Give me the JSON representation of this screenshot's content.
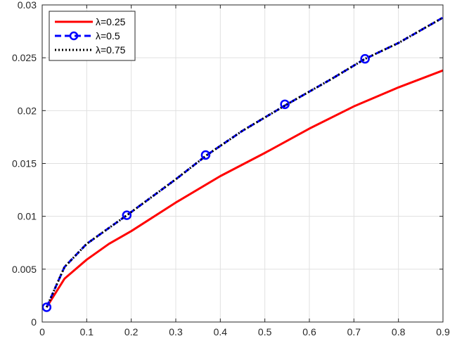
{
  "chart_data": {
    "type": "line",
    "title": "",
    "xlabel": "",
    "ylabel": "",
    "xlim": [
      0,
      0.9
    ],
    "ylim": [
      0,
      0.03
    ],
    "xticks": [
      0,
      0.1,
      0.2,
      0.3,
      0.4,
      0.5,
      0.6,
      0.7,
      0.8,
      0.9
    ],
    "xtick_labels": [
      "0",
      "0.1",
      "0.2",
      "0.3",
      "0.4",
      "0.5",
      "0.6",
      "0.7",
      "0.8",
      "0.9"
    ],
    "yticks": [
      0,
      0.005,
      0.01,
      0.015,
      0.02,
      0.025,
      0.03
    ],
    "ytick_labels": [
      "0",
      "0.005",
      "0.01",
      "0.015",
      "0.02",
      "0.025",
      "0.03"
    ],
    "grid": true,
    "legend_position": "top-left",
    "series": [
      {
        "name": "λ=0.25",
        "color": "#ff0000",
        "line_style": "solid",
        "marker": "none",
        "x": [
          0.01,
          0.05,
          0.1,
          0.15,
          0.2,
          0.3,
          0.4,
          0.5,
          0.6,
          0.7,
          0.8,
          0.9
        ],
        "y": [
          0.0014,
          0.0041,
          0.0059,
          0.0074,
          0.0086,
          0.0113,
          0.0138,
          0.016,
          0.0183,
          0.0204,
          0.0222,
          0.0238
        ]
      },
      {
        "name": "λ=0.5",
        "color": "#0000ff",
        "line_style": "dashed",
        "marker": "circle",
        "x": [
          0.01,
          0.05,
          0.1,
          0.15,
          0.19,
          0.3,
          0.37,
          0.45,
          0.55,
          0.65,
          0.725,
          0.8,
          0.9
        ],
        "y": [
          0.0014,
          0.0052,
          0.0074,
          0.0089,
          0.0101,
          0.0135,
          0.0158,
          0.0181,
          0.0206,
          0.023,
          0.0249,
          0.0264,
          0.0288
        ]
      },
      {
        "name": "λ=0.75",
        "color": "#000000",
        "line_style": "dotted",
        "marker": "none",
        "x": [
          0.01,
          0.05,
          0.1,
          0.15,
          0.19,
          0.3,
          0.37,
          0.45,
          0.55,
          0.65,
          0.725,
          0.8,
          0.9
        ],
        "y": [
          0.0014,
          0.0052,
          0.0074,
          0.0089,
          0.0101,
          0.0135,
          0.0158,
          0.0181,
          0.0206,
          0.023,
          0.0249,
          0.0264,
          0.0288
        ]
      }
    ],
    "markers_series_index": 1,
    "marker_points": {
      "x": [
        0.01,
        0.19,
        0.367,
        0.545,
        0.725
      ],
      "y": [
        0.0014,
        0.0101,
        0.0158,
        0.0206,
        0.0249
      ]
    }
  }
}
